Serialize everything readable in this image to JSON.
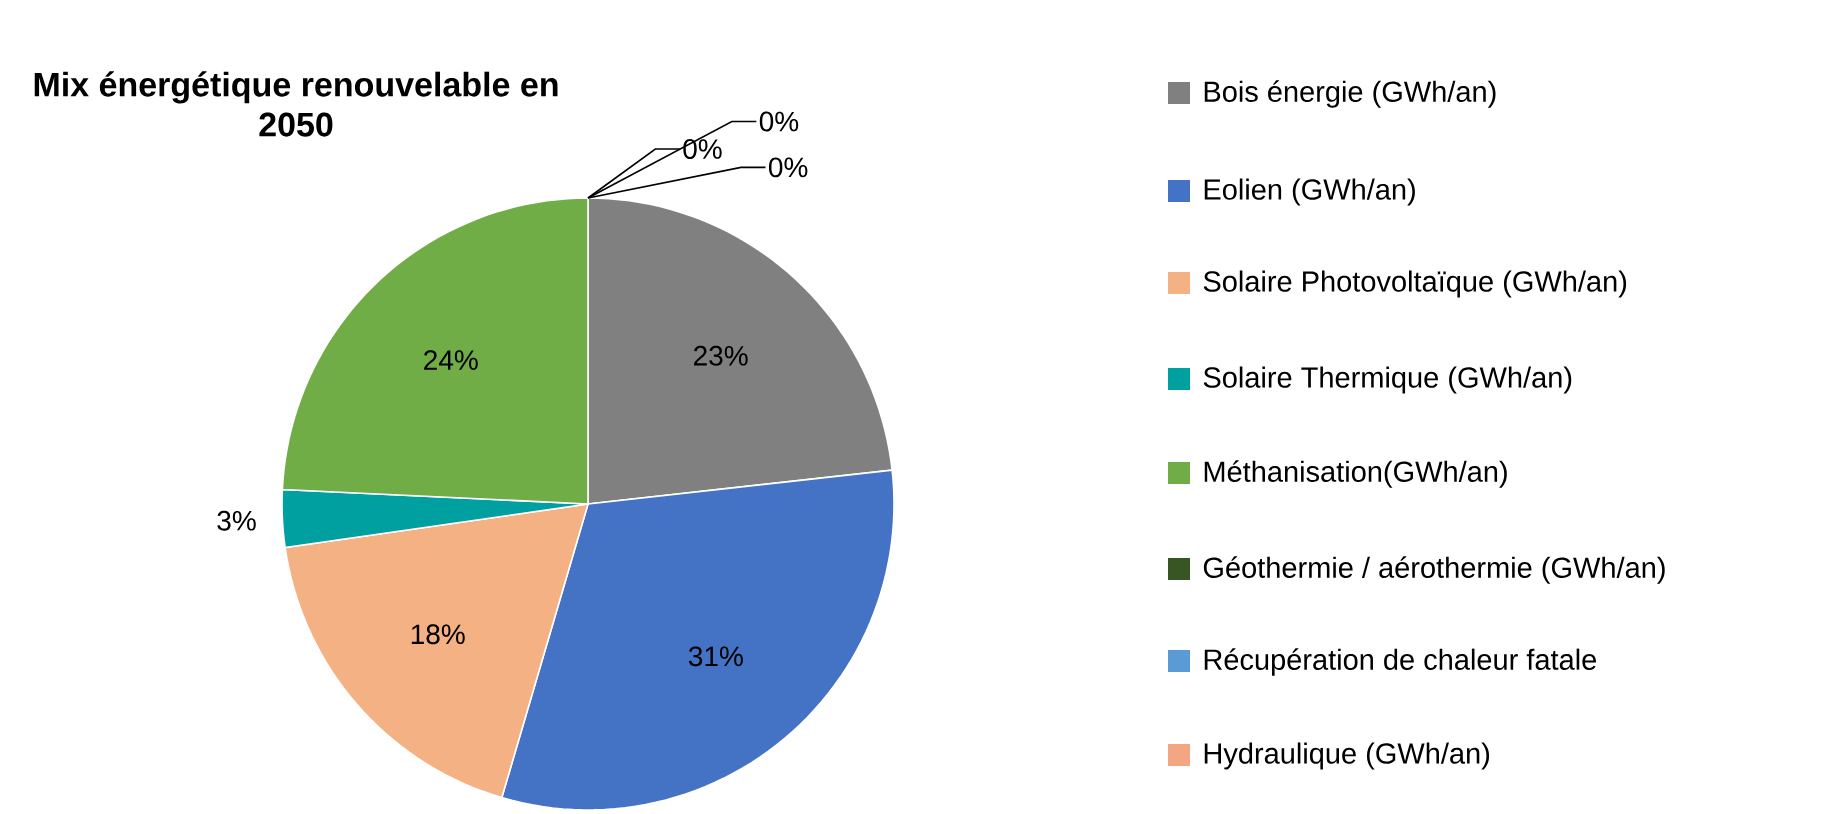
{
  "chart_data": {
    "type": "pie",
    "title": "Mix énergétique renouvelable en 2050",
    "categories": [
      "Bois énergie (GWh/an)",
      "Eolien (GWh/an)",
      "Solaire Photovoltaïque (GWh/an)",
      "Solaire Thermique (GWh/an)",
      "Méthanisation(GWh/an)",
      "Géothermie / aérothermie (GWh/an)",
      "Récupération de chaleur fatale",
      "Hydraulique (GWh/an)"
    ],
    "values": [
      23,
      31,
      18,
      3,
      24,
      0,
      0,
      0
    ],
    "colors": [
      "#808080",
      "#4472c4",
      "#f4b183",
      "#00a0a0",
      "#70ad47",
      "#375623",
      "#5b9bd5",
      "#f4a582"
    ],
    "value_labels": [
      "23%",
      "31%",
      "18%",
      "3%",
      "24%",
      "0%",
      "0%",
      "0%"
    ],
    "legend": "right"
  }
}
